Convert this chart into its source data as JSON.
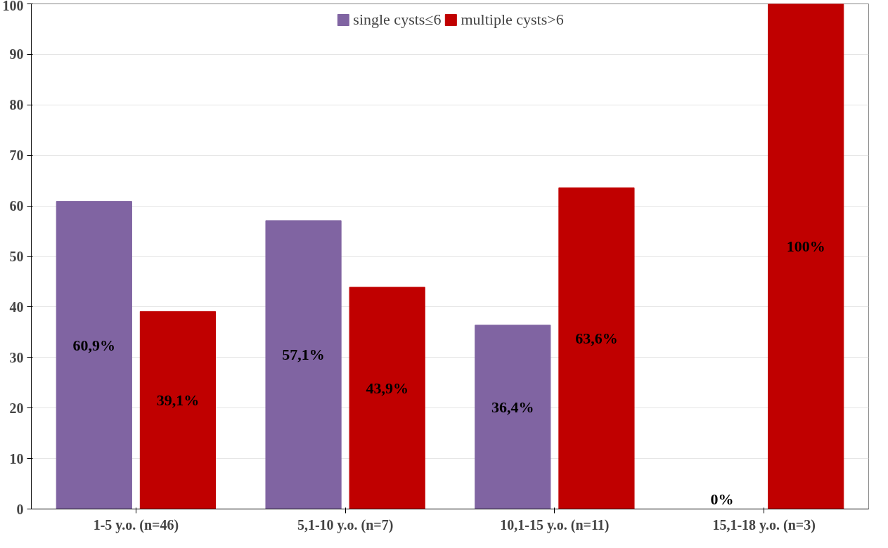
{
  "chart_data": {
    "type": "bar",
    "categories": [
      "1-5 y.o. (n=46)",
      "5,1-10 y.o. (n=7)",
      "10,1-15 y.o. (n=11)",
      "15,1-18 y.o. (n=3)"
    ],
    "series": [
      {
        "name": "single cysts≤6",
        "color": "#8064a2",
        "values": [
          60.9,
          57.1,
          36.4,
          0
        ],
        "value_labels": [
          "60,9%",
          "57,1%",
          "36,4%",
          "0%"
        ]
      },
      {
        "name": "multiple cysts>6",
        "color": "#c00000",
        "values": [
          39.1,
          43.9,
          63.6,
          100
        ],
        "value_labels": [
          "39,1%",
          "43,9%",
          "63,6%",
          "100%"
        ]
      }
    ],
    "ylim": [
      0,
      100
    ],
    "yticks": [
      0,
      10,
      20,
      30,
      40,
      50,
      60,
      70,
      80,
      90,
      100
    ],
    "grid": "y",
    "legend": "top"
  }
}
